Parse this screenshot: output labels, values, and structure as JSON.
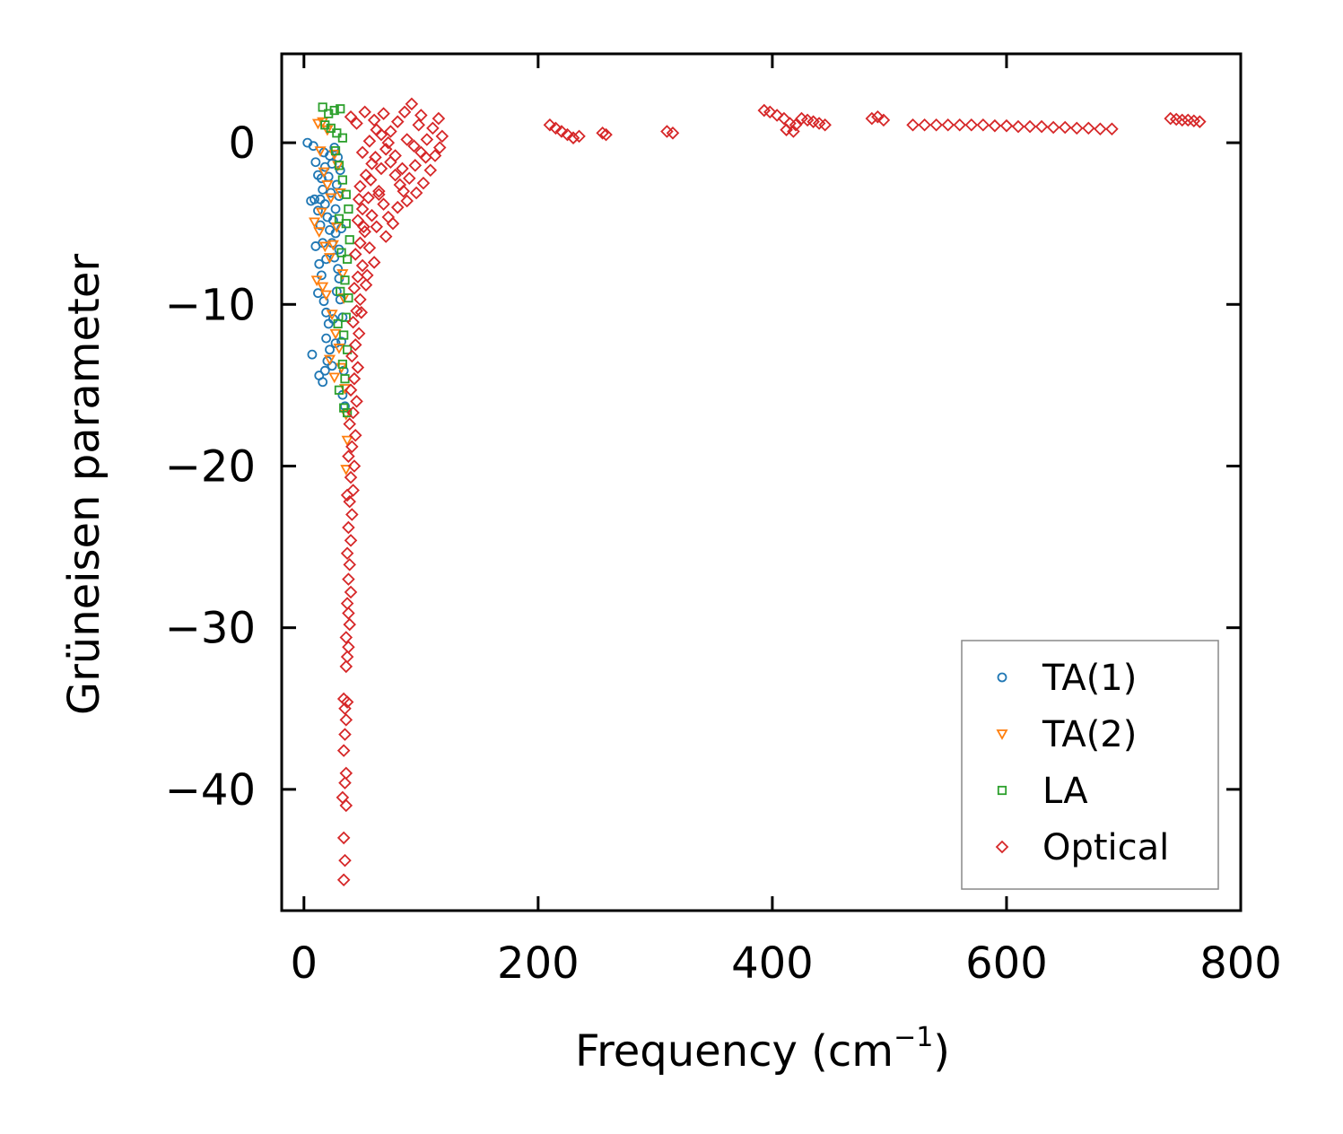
{
  "chart_data": {
    "type": "scatter",
    "title": "",
    "xlabel": "Frequency (cm",
    "xlabel_sup": "−1",
    "xlabel_close": ")",
    "ylabel": "Grüneisen parameter",
    "xlim": [
      -19,
      800
    ],
    "ylim": [
      -47.5,
      5.5
    ],
    "xticks": [
      0,
      200,
      400,
      600,
      800
    ],
    "xtick_labels": [
      "0",
      "200",
      "400",
      "600",
      "800"
    ],
    "yticks": [
      0,
      -10,
      -20,
      -30,
      -40
    ],
    "ytick_labels": [
      "0",
      "−10",
      "−20",
      "−30",
      "−40"
    ],
    "grid": false,
    "legend_position": "bottom-right",
    "series": [
      {
        "name": "TA(1)",
        "marker": "circle",
        "color": "#1f77b4",
        "points": [
          [
            3,
            0
          ],
          [
            8,
            -0.2
          ],
          [
            10,
            -1.2
          ],
          [
            12,
            -2
          ],
          [
            14,
            -3.5
          ],
          [
            6,
            -3.6
          ],
          [
            9,
            -3.5
          ],
          [
            12,
            -4.2
          ],
          [
            14,
            -5.1
          ],
          [
            16,
            -6.2
          ],
          [
            10,
            -6.4
          ],
          [
            13,
            -7.5
          ],
          [
            15,
            -8.2
          ],
          [
            12,
            -9.3
          ],
          [
            17,
            -9.8
          ],
          [
            19,
            -10.5
          ],
          [
            21,
            -11.2
          ],
          [
            19,
            -12.1
          ],
          [
            22,
            -12.8
          ],
          [
            20,
            -13.5
          ],
          [
            18,
            -14.1
          ],
          [
            13,
            -14.4
          ],
          [
            16,
            -14.8
          ],
          [
            7,
            -13.1
          ],
          [
            24,
            -13.8
          ],
          [
            25,
            -10.9
          ],
          [
            27,
            -12.4
          ],
          [
            28,
            -9.2
          ],
          [
            30,
            -8.4
          ],
          [
            26,
            -7.1
          ],
          [
            24,
            -6.2
          ],
          [
            22,
            -5.4
          ],
          [
            20,
            -4.6
          ],
          [
            18,
            -3.8
          ],
          [
            16,
            -2.9
          ],
          [
            15,
            -2.2
          ],
          [
            18,
            -1.5
          ],
          [
            22,
            -0.8
          ],
          [
            26,
            -0.3
          ],
          [
            29,
            -0.9
          ],
          [
            31,
            -1.7
          ],
          [
            28,
            -2.6
          ],
          [
            30,
            -3.3
          ],
          [
            27,
            -4.1
          ],
          [
            32,
            -5.3
          ],
          [
            30,
            -6.6
          ],
          [
            29,
            -7.8
          ],
          [
            31,
            -9.7
          ],
          [
            33,
            -10.8
          ],
          [
            32,
            -12.3
          ],
          [
            34,
            -14.1
          ],
          [
            33,
            -15.6
          ],
          [
            35,
            -16.3
          ],
          [
            21,
            -2.1
          ],
          [
            24,
            -1.3
          ],
          [
            17,
            -0.6
          ],
          [
            23,
            -3.1
          ],
          [
            25,
            -4.8
          ],
          [
            27,
            -5.6
          ],
          [
            19,
            -7.2
          ]
        ]
      },
      {
        "name": "TA(2)",
        "marker": "triangle_down",
        "color": "#ff7f0e",
        "points": [
          [
            12,
            1.2
          ],
          [
            16,
            1.3
          ],
          [
            20,
            0.8
          ],
          [
            14,
            -0.5
          ],
          [
            17,
            -1.8
          ],
          [
            20,
            -2.6
          ],
          [
            23,
            -3.4
          ],
          [
            15,
            -4.3
          ],
          [
            9,
            -4.9
          ],
          [
            13,
            -5.5
          ],
          [
            18,
            -6.4
          ],
          [
            22,
            -7.1
          ],
          [
            11,
            -8.5
          ],
          [
            16,
            -8.9
          ],
          [
            19,
            -9.4
          ],
          [
            24,
            -10.6
          ],
          [
            27,
            -11.8
          ],
          [
            30,
            -12.7
          ],
          [
            32,
            -13.9
          ],
          [
            35,
            -15.2
          ],
          [
            36,
            -16.8
          ],
          [
            37,
            -18.4
          ],
          [
            36,
            -20.2
          ],
          [
            25,
            -6.3
          ],
          [
            28,
            -5.2
          ],
          [
            31,
            -3.1
          ],
          [
            29,
            -1.4
          ],
          [
            26,
            -0.7
          ],
          [
            33,
            -8.1
          ],
          [
            34,
            -9.6
          ],
          [
            22,
            -13.4
          ],
          [
            26,
            -14.5
          ]
        ]
      },
      {
        "name": "LA",
        "marker": "square",
        "color": "#2ca02c",
        "points": [
          [
            16,
            2.2
          ],
          [
            21,
            1.8
          ],
          [
            26,
            2.0
          ],
          [
            31,
            2.1
          ],
          [
            18,
            1.1
          ],
          [
            23,
            0.9
          ],
          [
            28,
            0.6
          ],
          [
            33,
            0.3
          ],
          [
            27,
            -0.5
          ],
          [
            30,
            -1.4
          ],
          [
            33,
            -2.3
          ],
          [
            36,
            -3.2
          ],
          [
            38,
            -4.1
          ],
          [
            36,
            -5.0
          ],
          [
            39,
            -6.0
          ],
          [
            37,
            -7.2
          ],
          [
            35,
            -8.5
          ],
          [
            38,
            -9.6
          ],
          [
            36,
            -10.8
          ],
          [
            34,
            -11.9
          ],
          [
            37,
            -12.8
          ],
          [
            33,
            -13.7
          ],
          [
            35,
            -14.6
          ],
          [
            30,
            -15.3
          ],
          [
            34,
            -16.4
          ],
          [
            37,
            -16.7
          ],
          [
            29,
            -11.2
          ],
          [
            31,
            -9.2
          ],
          [
            32,
            -6.8
          ],
          [
            30,
            -4.7
          ]
        ]
      },
      {
        "name": "Optical",
        "marker": "diamond",
        "color": "#d62728",
        "points": [
          [
            34,
            -45.6
          ],
          [
            35,
            -44.4
          ],
          [
            34,
            -43.0
          ],
          [
            36,
            -41.0
          ],
          [
            33,
            -40.5
          ],
          [
            35,
            -39.6
          ],
          [
            36,
            -39.0
          ],
          [
            34,
            -37.6
          ],
          [
            35,
            -36.6
          ],
          [
            36,
            -35.7
          ],
          [
            35,
            -35.0
          ],
          [
            37,
            -34.6
          ],
          [
            34,
            -34.4
          ],
          [
            36,
            -32.4
          ],
          [
            37,
            -31.8
          ],
          [
            38,
            -31.2
          ],
          [
            36,
            -30.6
          ],
          [
            39,
            -29.8
          ],
          [
            38,
            -29.1
          ],
          [
            37,
            -28.5
          ],
          [
            40,
            -27.8
          ],
          [
            38,
            -27.0
          ],
          [
            39,
            -26.1
          ],
          [
            37,
            -25.4
          ],
          [
            40,
            -24.6
          ],
          [
            38,
            -23.8
          ],
          [
            41,
            -23.0
          ],
          [
            39,
            -22.2
          ],
          [
            42,
            -21.5
          ],
          [
            37,
            -21.8
          ],
          [
            40,
            -20.7
          ],
          [
            43,
            -20.0
          ],
          [
            38,
            -19.4
          ],
          [
            41,
            -18.8
          ],
          [
            44,
            -18.1
          ],
          [
            39,
            -17.4
          ],
          [
            42,
            -16.7
          ],
          [
            45,
            -16.0
          ],
          [
            40,
            -15.3
          ],
          [
            43,
            -14.6
          ],
          [
            46,
            -13.9
          ],
          [
            41,
            -13.2
          ],
          [
            44,
            -12.5
          ],
          [
            47,
            -11.8
          ],
          [
            42,
            -11.1
          ],
          [
            45,
            -10.4
          ],
          [
            48,
            -9.7
          ],
          [
            43,
            -9.0
          ],
          [
            46,
            -8.3
          ],
          [
            50,
            -7.6
          ],
          [
            44,
            -6.9
          ],
          [
            48,
            -6.2
          ],
          [
            52,
            -5.5
          ],
          [
            46,
            -4.8
          ],
          [
            50,
            -4.1
          ],
          [
            55,
            -3.4
          ],
          [
            48,
            -2.7
          ],
          [
            53,
            -2.0
          ],
          [
            58,
            -1.3
          ],
          [
            50,
            -0.6
          ],
          [
            56,
            0.1
          ],
          [
            62,
            0.8
          ],
          [
            45,
            1.2
          ],
          [
            40,
            1.6
          ],
          [
            52,
            1.9
          ],
          [
            60,
            1.4
          ],
          [
            66,
            0.5
          ],
          [
            70,
            -0.4
          ],
          [
            74,
            -1.2
          ],
          [
            78,
            -2.0
          ],
          [
            82,
            -2.6
          ],
          [
            64,
            -3.2
          ],
          [
            68,
            -3.8
          ],
          [
            58,
            -4.5
          ],
          [
            62,
            -5.2
          ],
          [
            72,
            -4.6
          ],
          [
            85,
            -3.0
          ],
          [
            90,
            -2.2
          ],
          [
            95,
            -1.4
          ],
          [
            100,
            -0.6
          ],
          [
            105,
            0.2
          ],
          [
            110,
            0.9
          ],
          [
            115,
            1.5
          ],
          [
            118,
            0.4
          ],
          [
            112,
            -0.8
          ],
          [
            108,
            -1.7
          ],
          [
            102,
            -2.5
          ],
          [
            96,
            -3.1
          ],
          [
            88,
            -3.6
          ],
          [
            80,
            -4.0
          ],
          [
            76,
            -5.0
          ],
          [
            70,
            -5.8
          ],
          [
            92,
            2.4
          ],
          [
            86,
            1.9
          ],
          [
            80,
            1.3
          ],
          [
            74,
            0.7
          ],
          [
            68,
            1.8
          ],
          [
            88,
            0.2
          ],
          [
            98,
            1.1
          ],
          [
            104,
            -0.9
          ],
          [
            116,
            -0.3
          ],
          [
            56,
            -6.5
          ],
          [
            60,
            -7.4
          ],
          [
            54,
            -8.2
          ],
          [
            64,
            -3.0
          ],
          [
            66,
            -1.6
          ],
          [
            72,
            0.0
          ],
          [
            78,
            -0.8
          ],
          [
            84,
            -1.6
          ],
          [
            94,
            -0.2
          ],
          [
            100,
            1.7
          ],
          [
            47,
            -3.5
          ],
          [
            51,
            -5.2
          ],
          [
            49,
            -10.5
          ],
          [
            53,
            -8.8
          ],
          [
            57,
            -2.3
          ],
          [
            61,
            -0.9
          ],
          [
            210,
            1.1
          ],
          [
            215,
            0.9
          ],
          [
            220,
            0.7
          ],
          [
            225,
            0.5
          ],
          [
            230,
            0.3
          ],
          [
            235,
            0.4
          ],
          [
            255,
            0.6
          ],
          [
            258,
            0.5
          ],
          [
            310,
            0.7
          ],
          [
            315,
            0.6
          ],
          [
            393,
            2.0
          ],
          [
            398,
            1.9
          ],
          [
            404,
            1.7
          ],
          [
            410,
            1.5
          ],
          [
            415,
            1.2
          ],
          [
            420,
            1.1
          ],
          [
            425,
            1.5
          ],
          [
            430,
            1.4
          ],
          [
            435,
            1.3
          ],
          [
            440,
            1.2
          ],
          [
            445,
            1.1
          ],
          [
            412,
            0.8
          ],
          [
            418,
            0.7
          ],
          [
            485,
            1.5
          ],
          [
            490,
            1.6
          ],
          [
            495,
            1.4
          ],
          [
            520,
            1.1
          ],
          [
            530,
            1.1
          ],
          [
            540,
            1.1
          ],
          [
            550,
            1.1
          ],
          [
            560,
            1.1
          ],
          [
            570,
            1.1
          ],
          [
            580,
            1.1
          ],
          [
            590,
            1.05
          ],
          [
            600,
            1.05
          ],
          [
            610,
            1.0
          ],
          [
            620,
            1.0
          ],
          [
            630,
            1.0
          ],
          [
            640,
            0.95
          ],
          [
            650,
            0.95
          ],
          [
            660,
            0.9
          ],
          [
            670,
            0.9
          ],
          [
            680,
            0.85
          ],
          [
            690,
            0.85
          ],
          [
            740,
            1.5
          ],
          [
            745,
            1.45
          ],
          [
            750,
            1.4
          ],
          [
            755,
            1.4
          ],
          [
            760,
            1.35
          ],
          [
            765,
            1.3
          ]
        ]
      }
    ]
  }
}
